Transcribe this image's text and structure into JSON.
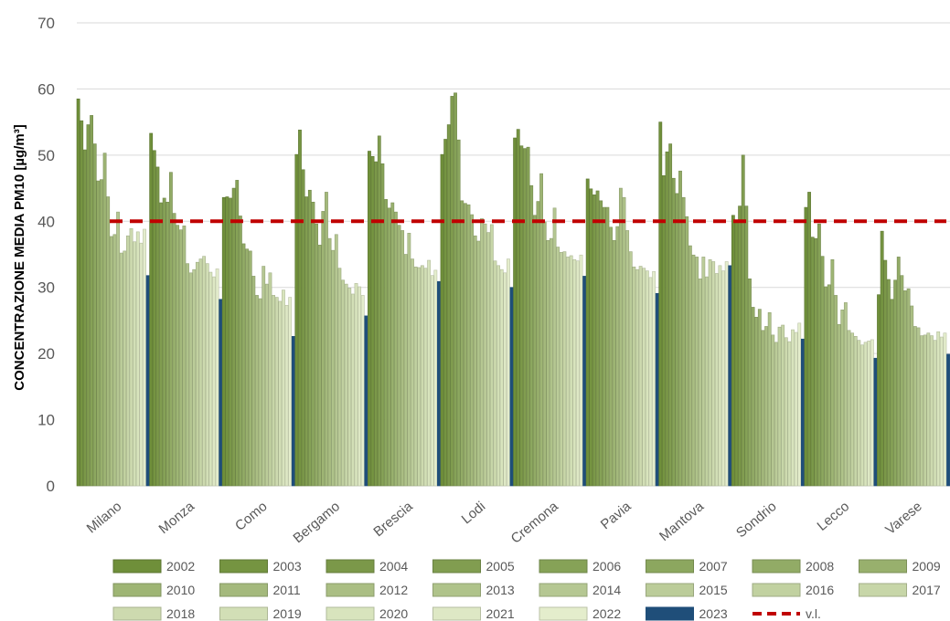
{
  "chart_data": {
    "type": "bar",
    "ylabel": "CONCENTRAZIONE MEDIA PM10 [µg/m³]",
    "ylim": [
      0,
      70
    ],
    "yticks": [
      0,
      10,
      20,
      30,
      40,
      50,
      60,
      70
    ],
    "grid": true,
    "legend_position": "bottom",
    "categories": [
      "Milano",
      "Monza",
      "Como",
      "Bergamo",
      "Brescia",
      "Lodi",
      "Cremona",
      "Pavia",
      "Mantova",
      "Sondrio",
      "Lecco",
      "Varese"
    ],
    "series": [
      {
        "name": "2002",
        "values": [
          58.5,
          53.3,
          43.6,
          50.1,
          50.6,
          50.1,
          52.6,
          46.4,
          55.0,
          40.9,
          42.1,
          28.9
        ]
      },
      {
        "name": "2003",
        "values": [
          55.2,
          50.7,
          43.7,
          53.8,
          49.8,
          52.4,
          53.9,
          44.9,
          46.9,
          40.0,
          44.4,
          38.5
        ]
      },
      {
        "name": "2004",
        "values": [
          50.8,
          48.2,
          43.5,
          47.8,
          49.0,
          54.6,
          51.4,
          44.0,
          50.5,
          42.3,
          37.6,
          34.1
        ]
      },
      {
        "name": "2005",
        "values": [
          54.6,
          42.8,
          45.0,
          43.7,
          52.9,
          58.9,
          51.0,
          44.6,
          51.7,
          50.0,
          37.4,
          31.2
        ]
      },
      {
        "name": "2006",
        "values": [
          56.0,
          43.5,
          46.2,
          44.7,
          48.7,
          59.4,
          51.2,
          43.1,
          46.5,
          42.3,
          39.6,
          28.2
        ]
      },
      {
        "name": "2007",
        "values": [
          51.7,
          42.9,
          40.8,
          42.9,
          43.3,
          52.3,
          45.4,
          42.1,
          44.2,
          31.3,
          34.7,
          31.1
        ]
      },
      {
        "name": "2008",
        "values": [
          46.1,
          47.4,
          36.6,
          39.6,
          42.0,
          43.1,
          40.9,
          42.1,
          47.6,
          27.0,
          30.1,
          34.6
        ]
      },
      {
        "name": "2009",
        "values": [
          46.3,
          41.2,
          35.8,
          36.4,
          42.8,
          42.7,
          43.0,
          39.1,
          43.6,
          25.5,
          30.4,
          31.8
        ]
      },
      {
        "name": "2010",
        "values": [
          50.3,
          39.4,
          35.5,
          41.5,
          41.4,
          42.5,
          47.2,
          37.1,
          40.7,
          26.7,
          34.2,
          29.5
        ]
      },
      {
        "name": "2011",
        "values": [
          43.7,
          38.7,
          31.7,
          44.4,
          39.4,
          41.0,
          39.9,
          39.2,
          36.3,
          23.5,
          28.8,
          29.8
        ]
      },
      {
        "name": "2012",
        "values": [
          37.7,
          39.3,
          28.8,
          37.4,
          38.6,
          37.8,
          37.1,
          45.0,
          34.9,
          24.1,
          24.4,
          27.2
        ]
      },
      {
        "name": "2013",
        "values": [
          38.0,
          33.6,
          28.3,
          35.6,
          35.0,
          37.0,
          37.4,
          43.6,
          34.6,
          26.2,
          26.6,
          24.1
        ]
      },
      {
        "name": "2014",
        "values": [
          41.4,
          32.2,
          33.2,
          38.0,
          38.2,
          40.4,
          42.0,
          38.6,
          31.3,
          22.8,
          27.7,
          23.9
        ]
      },
      {
        "name": "2015",
        "values": [
          35.2,
          32.7,
          30.5,
          32.9,
          34.3,
          39.6,
          36.1,
          35.4,
          34.6,
          21.7,
          23.5,
          22.7
        ]
      },
      {
        "name": "2016",
        "values": [
          35.5,
          33.8,
          32.2,
          31.1,
          33.1,
          38.3,
          35.3,
          33.1,
          31.6,
          24.0,
          23.1,
          22.8
        ]
      },
      {
        "name": "2017",
        "values": [
          37.8,
          34.3,
          28.8,
          30.5,
          33.0,
          39.5,
          35.4,
          32.7,
          34.2,
          24.3,
          22.6,
          23.1
        ]
      },
      {
        "name": "2018",
        "values": [
          38.9,
          34.7,
          28.5,
          29.9,
          33.3,
          34.0,
          34.6,
          33.2,
          33.9,
          22.4,
          22.0,
          22.7
        ]
      },
      {
        "name": "2019",
        "values": [
          36.9,
          33.6,
          27.9,
          29.0,
          32.9,
          33.3,
          34.8,
          32.9,
          32.1,
          21.8,
          21.3,
          22.0
        ]
      },
      {
        "name": "2020",
        "values": [
          38.4,
          32.3,
          29.6,
          30.6,
          34.1,
          32.7,
          34.2,
          32.5,
          33.3,
          23.6,
          21.7,
          23.3
        ]
      },
      {
        "name": "2021",
        "values": [
          36.7,
          31.6,
          27.3,
          30.1,
          31.8,
          32.2,
          34.0,
          31.5,
          32.5,
          23.2,
          21.9,
          22.5
        ]
      },
      {
        "name": "2022",
        "values": [
          38.8,
          32.8,
          28.5,
          28.8,
          32.6,
          34.3,
          34.9,
          32.4,
          33.9,
          24.6,
          22.1,
          23.1
        ]
      },
      {
        "name": "2023",
        "values": [
          31.8,
          28.2,
          22.6,
          25.7,
          30.9,
          30.0,
          31.7,
          29.1,
          33.3,
          22.2,
          19.3,
          19.9
        ]
      }
    ],
    "reference_line": {
      "name": "v.l.",
      "value": 40,
      "color": "#c00000"
    },
    "colors": {
      "highlight": "#1f4e79",
      "bar_dark": "#6f8f3a",
      "bar_light": "#e4edcc",
      "grid": "#d9d9d9",
      "text": "#595959"
    }
  }
}
